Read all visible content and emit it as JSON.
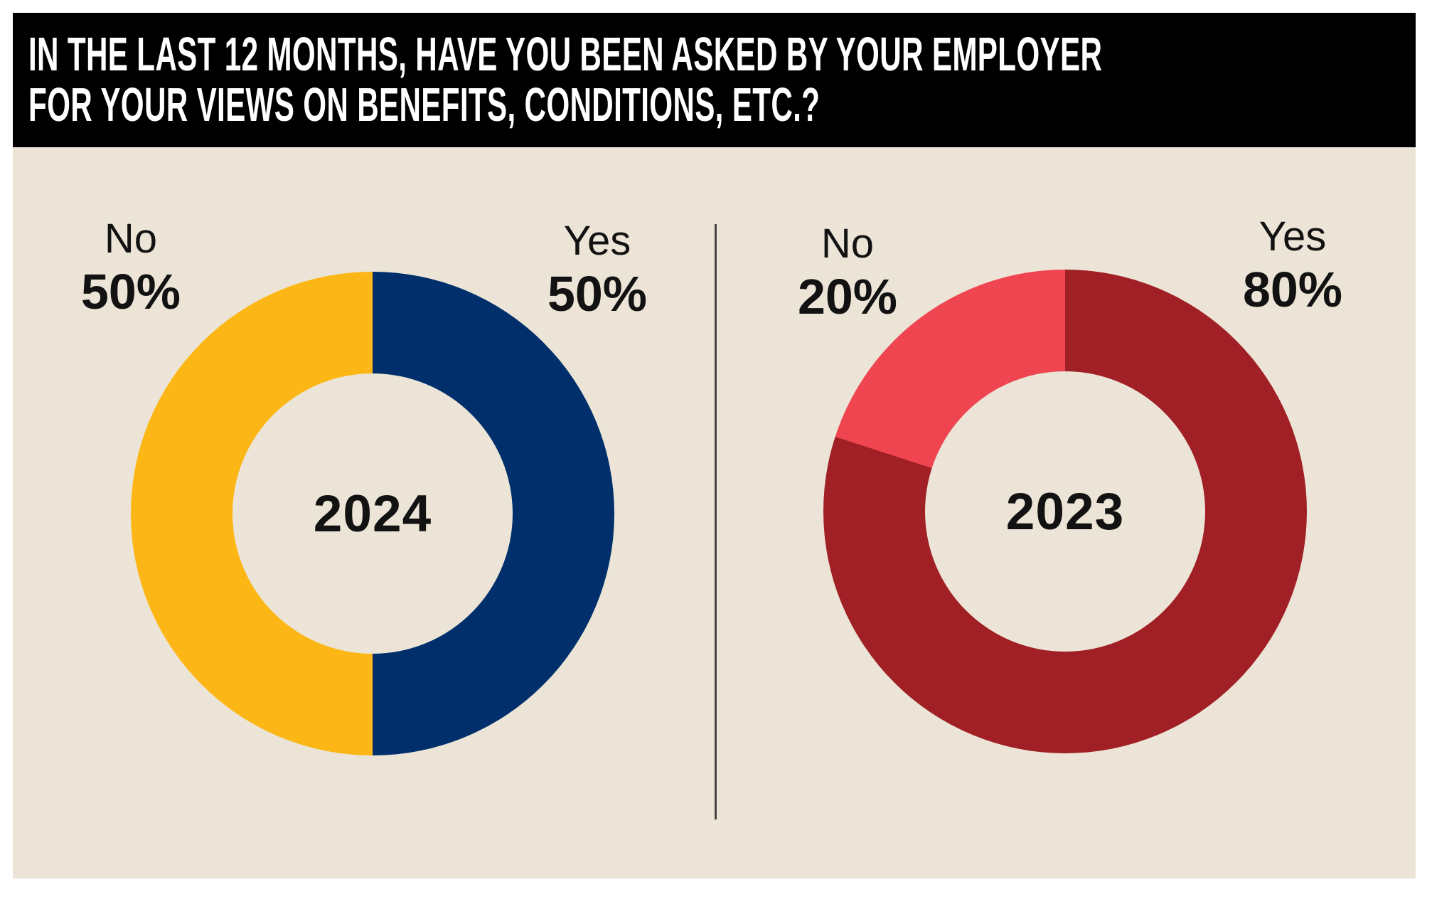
{
  "header": {
    "title_line1": "IN THE LAST 12 MONTHS, HAVE YOU BEEN ASKED BY YOUR EMPLOYER",
    "title_line2": "FOR YOUR VIEWS ON BENEFITS, CONDITIONS, ETC.?"
  },
  "colors": {
    "page_margin": "#FFFFFF",
    "header_background": "#000000",
    "header_text": "#FFFFFF",
    "canvas_background": "#ECE5D7",
    "divider": "#454340",
    "label_text": "#121212",
    "yes_2024": "#002F6C",
    "no_2024": "#FCB615",
    "yes_2023": "#A02025",
    "no_2023": "#EF4551"
  },
  "chart_data": [
    {
      "type": "pie",
      "subtype": "donut",
      "title": "IN THE LAST 12 MONTHS, HAVE YOU BEEN ASKED BY YOUR EMPLOYER FOR YOUR VIEWS ON BENEFITS, CONDITIONS, ETC.?",
      "center_label": "2024",
      "start_angle_deg": 0,
      "direction": "clockwise",
      "segments": [
        {
          "label": "Yes",
          "value": 50,
          "display_value": "50%",
          "color": "#002F6C",
          "label_side": "right"
        },
        {
          "label": "No",
          "value": 50,
          "display_value": "50%",
          "color": "#FCB615",
          "label_side": "left"
        }
      ]
    },
    {
      "type": "pie",
      "subtype": "donut",
      "title": "IN THE LAST 12 MONTHS, HAVE YOU BEEN ASKED BY YOUR EMPLOYER FOR YOUR VIEWS ON BENEFITS, CONDITIONS, ETC.?",
      "center_label": "2023",
      "start_angle_deg": 0,
      "direction": "clockwise",
      "segments": [
        {
          "label": "Yes",
          "value": 80,
          "display_value": "80%",
          "color": "#A02025",
          "label_side": "right"
        },
        {
          "label": "No",
          "value": 20,
          "display_value": "20%",
          "color": "#EF4551",
          "label_side": "left"
        }
      ]
    }
  ]
}
